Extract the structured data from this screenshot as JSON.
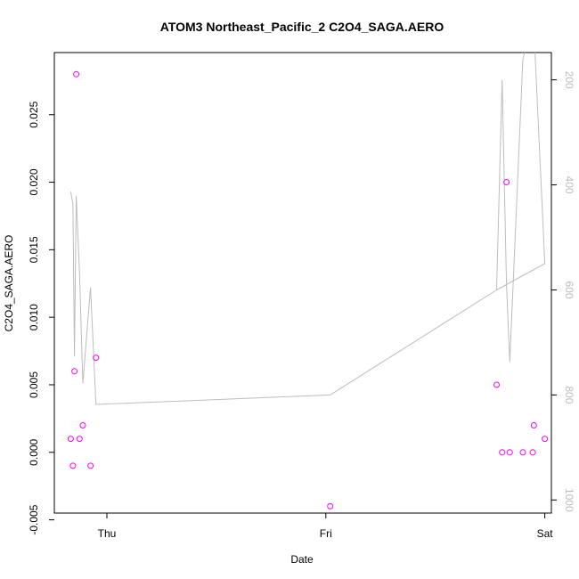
{
  "chart_data": {
    "type": "scatter",
    "title": "ATOM3 Northeast_Pacific_2 C2O4_SAGA.AERO",
    "xlabel": "Date",
    "ylabel": "C2O4_SAGA.AERO",
    "x_tick_labels": [
      "Thu",
      "Fri",
      "Sat"
    ],
    "x_tick_values": [
      0,
      1,
      2
    ],
    "xlim": [
      -0.24,
      2.03
    ],
    "ylim": [
      -0.0045,
      0.0296
    ],
    "y_ticks": [
      -0.005,
      0.0,
      0.005,
      0.01,
      0.015,
      0.02,
      0.025
    ],
    "y_tick_labels": [
      "-0.005",
      "0.000",
      "0.005",
      "0.010",
      "0.015",
      "0.020",
      "0.025"
    ],
    "y2_ticks": [
      200,
      400,
      600,
      800,
      1000
    ],
    "y2_tick_labels": [
      "200",
      "400",
      "600",
      "800",
      "1000"
    ],
    "y2lim_top_to_bottom": [
      148,
      1025
    ],
    "y2_reversed": true,
    "point_color": "#ff00ff",
    "line_color": "#bdbdbd",
    "points": [
      {
        "x": -0.165,
        "y": 0.001
      },
      {
        "x": -0.155,
        "y": -0.001
      },
      {
        "x": -0.148,
        "y": 0.006
      },
      {
        "x": -0.14,
        "y": 0.028
      },
      {
        "x": -0.125,
        "y": 0.001
      },
      {
        "x": -0.11,
        "y": 0.002
      },
      {
        "x": -0.075,
        "y": -0.001
      },
      {
        "x": -0.05,
        "y": 0.007
      },
      {
        "x": 1.02,
        "y": -0.004
      },
      {
        "x": 1.78,
        "y": 0.005
      },
      {
        "x": 1.805,
        "y": 0.0
      },
      {
        "x": 1.825,
        "y": 0.02
      },
      {
        "x": 1.84,
        "y": 0.0
      },
      {
        "x": 1.9,
        "y": 0.0
      },
      {
        "x": 1.945,
        "y": 0.0
      },
      {
        "x": 1.95,
        "y": 0.002
      },
      {
        "x": 2.0,
        "y": 0.001
      }
    ],
    "secondary_series": {
      "type": "line",
      "axis": "right",
      "x": [
        -0.165,
        -0.155,
        -0.152,
        -0.148,
        -0.14,
        -0.125,
        -0.11,
        -0.075,
        -0.05,
        1.02,
        1.78,
        1.805,
        1.825,
        1.84,
        1.9,
        1.945,
        1.95,
        2.0,
        1.78
      ],
      "y": [
        413,
        437,
        564,
        727,
        421,
        569,
        778,
        595,
        818,
        800,
        600,
        200,
        590,
        737,
        160,
        90,
        100,
        550,
        600
      ]
    }
  }
}
